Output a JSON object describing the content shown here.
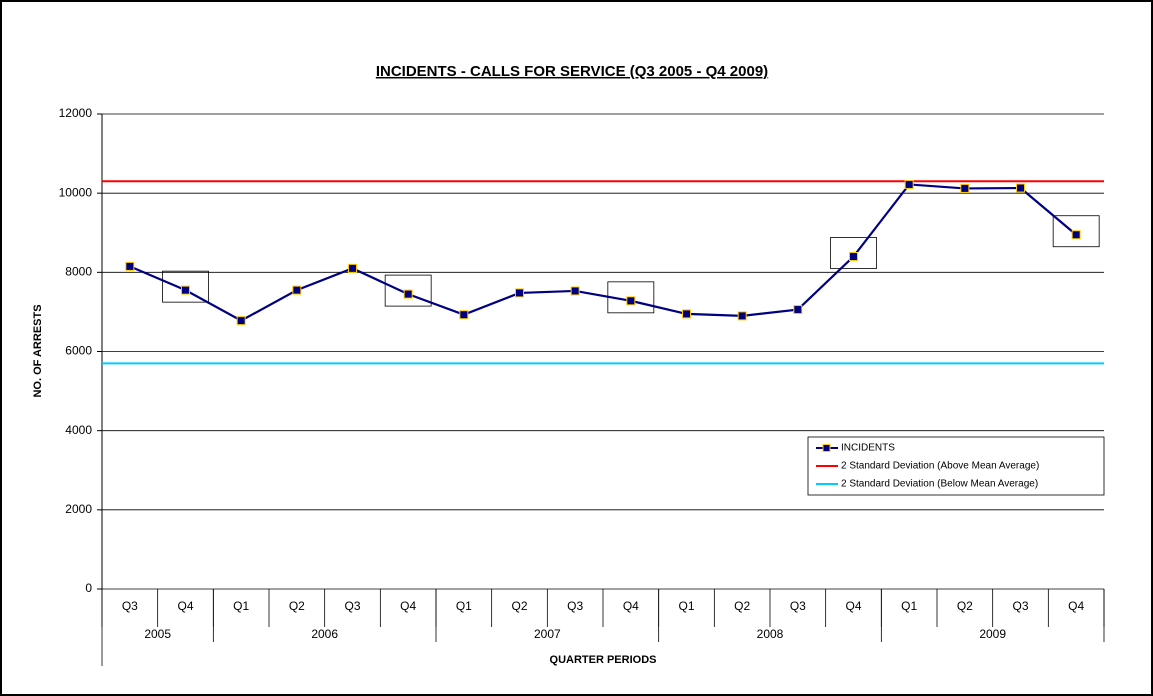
{
  "chart_data": {
    "type": "line",
    "title": "INCIDENTS - CALLS FOR SERVICE (Q3 2005 - Q4 2009)",
    "ylabel": "NO. OF ARRESTS",
    "xlabel": "QUARTER PERIODS",
    "categories": [
      "Q3",
      "Q4",
      "Q1",
      "Q2",
      "Q3",
      "Q4",
      "Q1",
      "Q2",
      "Q3",
      "Q4",
      "Q1",
      "Q2",
      "Q3",
      "Q4",
      "Q1",
      "Q2",
      "Q3",
      "Q4"
    ],
    "category_groups": [
      {
        "label": "2005",
        "span": 2
      },
      {
        "label": "2006",
        "span": 4
      },
      {
        "label": "2007",
        "span": 4
      },
      {
        "label": "2008",
        "span": 4
      },
      {
        "label": "2009",
        "span": 4
      }
    ],
    "series": [
      {
        "name": "INCIDENTS",
        "color": "#000080",
        "marker_edge": "#ffcc00",
        "values": [
          8150,
          7550,
          6780,
          7550,
          8100,
          7450,
          6930,
          7480,
          7530,
          7280,
          6950,
          6900,
          7060,
          8400,
          10220,
          10120,
          10130,
          8950
        ]
      }
    ],
    "reference_lines": [
      {
        "name": "2 Standard Deviation (Above Mean Average)",
        "color": "#ff0000",
        "value": 10300
      },
      {
        "name": "2 Standard Deviation (Below Mean Average)",
        "color": "#00ccff",
        "value": 5700
      }
    ],
    "highlighted_points": [
      1,
      5,
      9,
      13,
      17
    ],
    "ylim": [
      0,
      12000
    ],
    "yticks": [
      0,
      2000,
      4000,
      6000,
      8000,
      10000,
      12000
    ],
    "grid": true,
    "legend": "lower right"
  }
}
